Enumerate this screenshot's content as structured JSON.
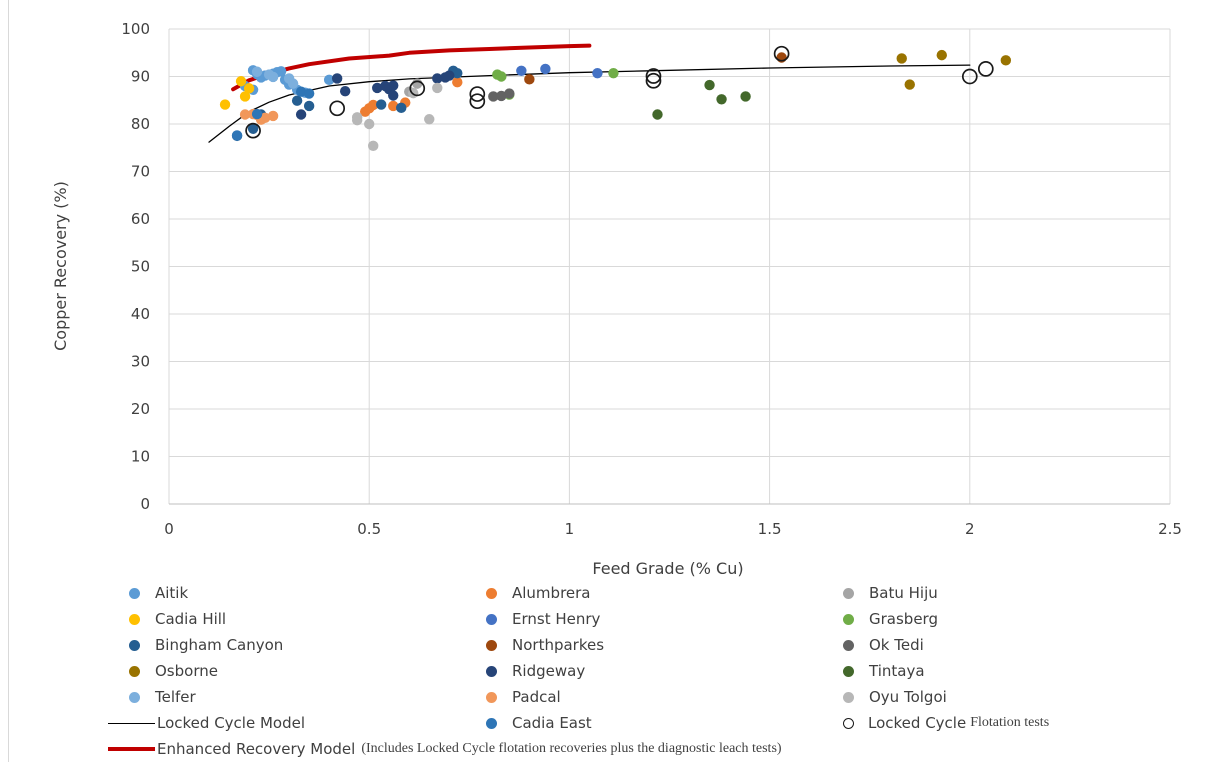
{
  "chart_data": {
    "type": "scatter",
    "title": "",
    "xlabel": "Feed Grade (% Cu)",
    "ylabel": "Copper Recovery (%)",
    "xlim": [
      0,
      2.5
    ],
    "ylim": [
      0,
      100
    ],
    "x_ticks": [
      "0",
      "0.5",
      "1",
      "1.5",
      "2",
      "2.5"
    ],
    "y_ticks": [
      "0",
      "10",
      "20",
      "30",
      "40",
      "50",
      "60",
      "70",
      "80",
      "90",
      "100"
    ],
    "grid": "horizontal",
    "legend_position": "bottom",
    "series": [
      {
        "name": "Aitik",
        "color": "#5b9bd5",
        "marker": "dot",
        "points": [
          [
            0.19,
            88
          ],
          [
            0.21,
            91.3
          ],
          [
            0.22,
            90.5
          ],
          [
            0.23,
            89.8
          ],
          [
            0.24,
            90.2
          ],
          [
            0.26,
            90.6
          ],
          [
            0.27,
            90.9
          ],
          [
            0.28,
            91.1
          ],
          [
            0.29,
            89.3
          ],
          [
            0.3,
            88.3
          ],
          [
            0.32,
            87.2
          ],
          [
            0.34,
            86.6
          ],
          [
            0.4,
            89.3
          ],
          [
            0.21,
            87.2
          ]
        ]
      },
      {
        "name": "Alumbrera",
        "color": "#ed7d31",
        "marker": "dot",
        "points": [
          [
            0.49,
            82.6
          ],
          [
            0.5,
            83.3
          ],
          [
            0.51,
            84
          ],
          [
            0.56,
            83.8
          ],
          [
            0.59,
            84.5
          ],
          [
            0.72,
            88.8
          ]
        ]
      },
      {
        "name": "Batu Hiju",
        "color": "#a5a5a5",
        "marker": "dot",
        "points": [
          [
            0.6,
            86.8
          ],
          [
            0.62,
            88.5
          ]
        ]
      },
      {
        "name": "Cadia Hill",
        "color": "#ffc000",
        "marker": "dot",
        "points": [
          [
            0.14,
            84.1
          ],
          [
            0.18,
            89
          ],
          [
            0.19,
            85.8
          ],
          [
            0.2,
            87.5
          ]
        ]
      },
      {
        "name": "Ernst Henry",
        "color": "#4472c4",
        "marker": "dot",
        "points": [
          [
            0.88,
            91.2
          ],
          [
            0.94,
            91.6
          ],
          [
            1.07,
            90.7
          ]
        ]
      },
      {
        "name": "Grasberg",
        "color": "#70ad47",
        "marker": "dot",
        "points": [
          [
            0.82,
            90.4
          ],
          [
            0.83,
            90
          ],
          [
            0.85,
            86.2
          ],
          [
            1.11,
            90.7
          ]
        ]
      },
      {
        "name": "Bingham Canyon",
        "color": "#255e91",
        "marker": "dot",
        "points": [
          [
            0.17,
            77.5
          ],
          [
            0.21,
            79
          ],
          [
            0.23,
            82
          ],
          [
            0.32,
            84.9
          ],
          [
            0.35,
            83.8
          ],
          [
            0.53,
            84.1
          ],
          [
            0.58,
            83.4
          ],
          [
            0.71,
            91.2
          ],
          [
            0.72,
            90.7
          ]
        ]
      },
      {
        "name": "Northparkes",
        "color": "#9e480e",
        "marker": "dot",
        "points": [
          [
            0.9,
            89.4
          ],
          [
            1.53,
            94
          ]
        ]
      },
      {
        "name": "Ok Tedi",
        "color": "#636363",
        "marker": "dot",
        "points": [
          [
            0.81,
            85.8
          ],
          [
            0.83,
            85.9
          ],
          [
            0.85,
            86.4
          ]
        ]
      },
      {
        "name": "Osborne",
        "color": "#997300",
        "marker": "dot",
        "points": [
          [
            1.83,
            93.8
          ],
          [
            1.85,
            88.3
          ],
          [
            1.93,
            94.5
          ],
          [
            2.09,
            93.4
          ]
        ]
      },
      {
        "name": "Ridgeway",
        "color": "#264478",
        "marker": "dot",
        "points": [
          [
            0.33,
            82
          ],
          [
            0.42,
            89.6
          ],
          [
            0.44,
            86.9
          ],
          [
            0.52,
            87.6
          ],
          [
            0.54,
            88
          ],
          [
            0.55,
            87.3
          ],
          [
            0.56,
            88.1
          ],
          [
            0.56,
            86
          ],
          [
            0.67,
            89.6
          ],
          [
            0.69,
            89.8
          ],
          [
            0.7,
            90.2
          ]
        ]
      },
      {
        "name": "Tintaya",
        "color": "#43682b",
        "marker": "dot",
        "points": [
          [
            1.22,
            82
          ],
          [
            1.35,
            88.2
          ],
          [
            1.38,
            85.2
          ],
          [
            1.44,
            85.8
          ]
        ]
      },
      {
        "name": "Telfer",
        "color": "#7cafdd",
        "marker": "dot",
        "points": [
          [
            0.22,
            91
          ],
          [
            0.25,
            90.4
          ],
          [
            0.3,
            89.6
          ],
          [
            0.31,
            88.5
          ],
          [
            0.26,
            89.9
          ]
        ]
      },
      {
        "name": "Padcal",
        "color": "#f1975a",
        "marker": "dot",
        "points": [
          [
            0.19,
            82
          ],
          [
            0.21,
            82.1
          ],
          [
            0.22,
            81.9
          ],
          [
            0.23,
            80.9
          ],
          [
            0.24,
            81.3
          ],
          [
            0.26,
            81.7
          ]
        ]
      },
      {
        "name": "Oyu Tolgoi",
        "color": "#b7b7b7",
        "marker": "dot",
        "points": [
          [
            0.47,
            80.8
          ],
          [
            0.47,
            81.4
          ],
          [
            0.5,
            80
          ],
          [
            0.51,
            75.4
          ],
          [
            0.61,
            86.5
          ],
          [
            0.65,
            81
          ],
          [
            0.67,
            87.6
          ]
        ]
      },
      {
        "name": "Locked Cycle Model",
        "color": "#000000",
        "marker": "line",
        "points": [
          [
            0.1,
            76.2
          ],
          [
            0.15,
            79.5
          ],
          [
            0.2,
            82.6
          ],
          [
            0.25,
            84.6
          ],
          [
            0.3,
            86.1
          ],
          [
            0.4,
            88
          ],
          [
            0.5,
            88.9
          ],
          [
            0.6,
            89.5
          ],
          [
            0.8,
            90.2
          ],
          [
            1.0,
            90.8
          ],
          [
            1.2,
            91.2
          ],
          [
            1.5,
            91.8
          ],
          [
            1.8,
            92.2
          ],
          [
            2.0,
            92.4
          ]
        ]
      },
      {
        "name": "Cadia East",
        "color": "#2e75b6",
        "marker": "dot",
        "points": [
          [
            0.17,
            77.6
          ],
          [
            0.22,
            82.1
          ],
          [
            0.33,
            86.8
          ],
          [
            0.35,
            86.4
          ]
        ]
      },
      {
        "name": "Locked Cycle",
        "name_suffix": "Flotation tests",
        "color": "#1a1a1a",
        "marker": "ring",
        "points": [
          [
            0.21,
            78.6
          ],
          [
            0.42,
            83.3
          ],
          [
            0.62,
            87.5
          ],
          [
            0.77,
            86.3
          ],
          [
            0.77,
            84.8
          ],
          [
            1.21,
            90.1
          ],
          [
            1.21,
            89.1
          ],
          [
            1.53,
            94.8
          ],
          [
            2.0,
            90
          ],
          [
            2.04,
            91.6
          ]
        ]
      },
      {
        "name": "Enhanced Recovery Model",
        "name_note": "(Includes Locked Cycle flotation recoveries plus the diagnostic leach tests)",
        "color": "#c00000",
        "marker": "thick-line",
        "points": [
          [
            0.16,
            87.3
          ],
          [
            0.2,
            89.2
          ],
          [
            0.25,
            90.6
          ],
          [
            0.3,
            91.7
          ],
          [
            0.35,
            92.6
          ],
          [
            0.45,
            93.8
          ],
          [
            0.55,
            94.4
          ],
          [
            0.6,
            95
          ],
          [
            0.7,
            95.5
          ],
          [
            0.8,
            95.8
          ],
          [
            0.9,
            96.1
          ],
          [
            1.0,
            96.4
          ],
          [
            1.05,
            96.5
          ]
        ]
      }
    ]
  }
}
